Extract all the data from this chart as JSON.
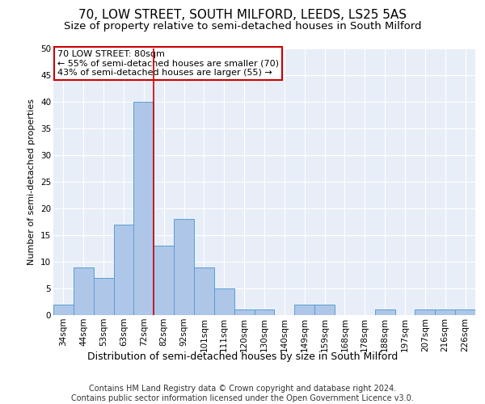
{
  "title": "70, LOW STREET, SOUTH MILFORD, LEEDS, LS25 5AS",
  "subtitle": "Size of property relative to semi-detached houses in South Milford",
  "xlabel": "Distribution of semi-detached houses by size in South Milford",
  "ylabel": "Number of semi-detached properties",
  "footer": "Contains HM Land Registry data © Crown copyright and database right 2024.\nContains public sector information licensed under the Open Government Licence v3.0.",
  "categories": [
    "34sqm",
    "44sqm",
    "53sqm",
    "63sqm",
    "72sqm",
    "82sqm",
    "92sqm",
    "101sqm",
    "111sqm",
    "120sqm",
    "130sqm",
    "140sqm",
    "149sqm",
    "159sqm",
    "168sqm",
    "178sqm",
    "188sqm",
    "197sqm",
    "207sqm",
    "216sqm",
    "226sqm"
  ],
  "values": [
    2,
    9,
    7,
    17,
    40,
    13,
    18,
    9,
    5,
    1,
    1,
    0,
    2,
    2,
    0,
    0,
    1,
    0,
    1,
    1,
    1
  ],
  "bar_color": "#aec6e8",
  "bar_edge_color": "#5a9fd4",
  "vline_color": "#cc0000",
  "vline_x_index": 4.5,
  "annotation_title": "70 LOW STREET: 80sqm",
  "annotation_line1": "← 55% of semi-detached houses are smaller (70)",
  "annotation_line2": "43% of semi-detached houses are larger (55) →",
  "annotation_box_color": "#ffffff",
  "annotation_box_edge": "#cc0000",
  "ylim": [
    0,
    50
  ],
  "yticks": [
    0,
    5,
    10,
    15,
    20,
    25,
    30,
    35,
    40,
    45,
    50
  ],
  "bg_color": "#e8eef7",
  "plot_bg_color": "#e8eef7",
  "title_fontsize": 11,
  "subtitle_fontsize": 9.5,
  "xlabel_fontsize": 9,
  "ylabel_fontsize": 8,
  "tick_fontsize": 7.5,
  "footer_fontsize": 7,
  "ann_fontsize": 8
}
